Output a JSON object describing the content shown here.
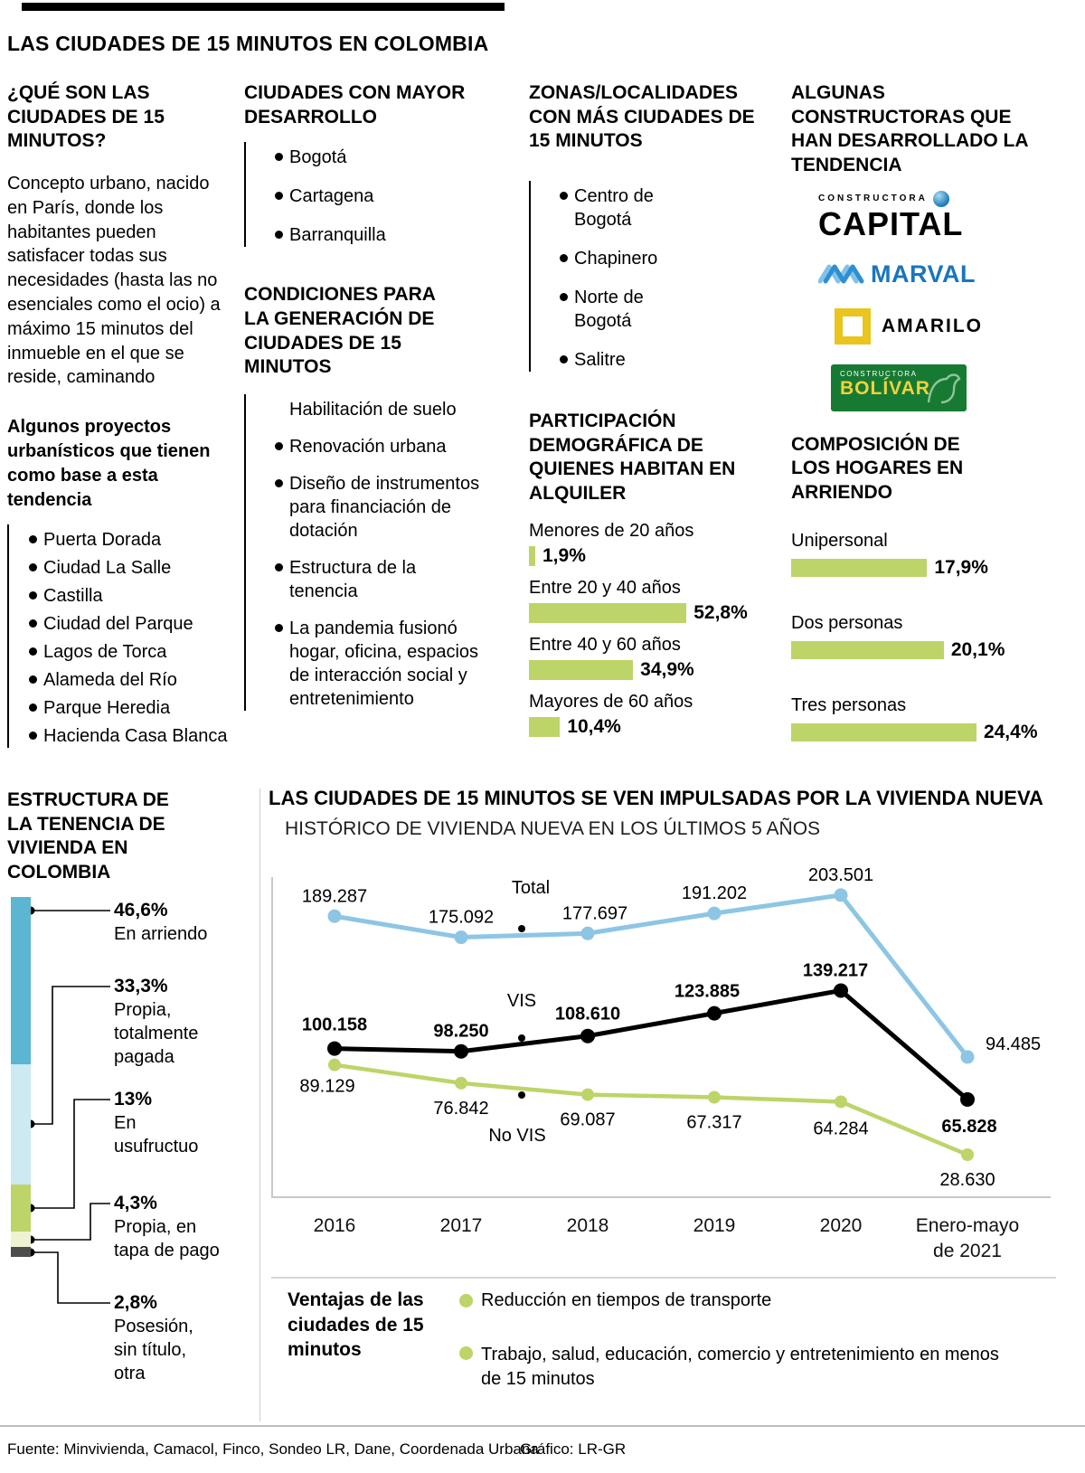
{
  "colors": {
    "accent": "#bdd468",
    "blue": "#8cc6e4",
    "teal": "#5ab6d1"
  },
  "header": {
    "title": "LAS CIUDADES DE 15 MINUTOS EN COLOMBIA"
  },
  "what": {
    "title": "¿QUÉ SON LAS CIUDADES DE 15 MINUTOS?",
    "text": "Concepto urbano, nacido en París, donde los habitantes pueden satisfacer todas sus necesidades (hasta las no esenciales como el ocio) a máximo 15 minutos del inmueble en el que se reside, caminando",
    "projects_title": "Algunos proyectos urbanísticos que tienen como base a esta tendencia",
    "projects": [
      "Puerta Dorada",
      "Ciudad La Salle",
      "Castilla",
      "Ciudad del Parque",
      "Lagos de Torca",
      "Alameda del Río",
      "Parque Heredia",
      "Hacienda Casa Blanca"
    ]
  },
  "development": {
    "title": "CIUDADES CON MAYOR DESARROLLO",
    "cities": [
      "Bogotá",
      "Cartagena",
      "Barranquilla"
    ]
  },
  "conditions": {
    "title": "CONDICIONES PARA LA GENERACIÓN DE CIUDADES DE 15 MINUTOS",
    "items": [
      "Habilitación de suelo",
      "Renovación urbana",
      "Diseño de instrumentos para financiación de dotación",
      "Estructura de la tenencia",
      "La pandemia fusionó hogar, oficina, espacios de interacción social y entretenimiento"
    ]
  },
  "zones": {
    "title": "ZONAS/LOCALIDADES CON MÁS CIUDADES DE 15 MINUTOS",
    "items": [
      "Centro de Bogotá",
      "Chapinero",
      "Norte de Bogotá",
      "Salitre"
    ]
  },
  "demographics": {
    "title": "PARTICIPACIÓN DEMOGRÁFICA DE QUIENES HABITAN EN ALQUILER",
    "rows": [
      {
        "label": "Menores de 20 años",
        "value": "1,9%",
        "pct": 1.9
      },
      {
        "label": "Entre 20 y 40 años",
        "value": "52,8%",
        "pct": 52.8
      },
      {
        "label": "Entre 40 y 60 años",
        "value": "34,9%",
        "pct": 34.9
      },
      {
        "label": "Mayores de 60 años",
        "value": "10,4%",
        "pct": 10.4
      }
    ]
  },
  "builders": {
    "title": "ALGUNAS CONSTRUCTORAS QUE HAN DESARROLLADO LA TENDENCIA",
    "capital": {
      "small": "CONSTRUCTORA",
      "big": "CAPITAL"
    },
    "marval": "MARVAL",
    "amarilo": "AMARILO",
    "bolivar": {
      "small": "CONSTRUCTORA",
      "big": "BOLÍVAR"
    }
  },
  "households": {
    "title": "COMPOSICIÓN DE LOS HOGARES EN ARRIENDO",
    "rows": [
      {
        "label": "Unipersonal",
        "value": "17,9%",
        "pct": 17.9
      },
      {
        "label": "Dos personas",
        "value": "20,1%",
        "pct": 20.1
      },
      {
        "label": "Tres personas",
        "value": "24,4%",
        "pct": 24.4
      }
    ]
  },
  "tenure": {
    "title": "ESTRUCTURA DE LA TENENCIA DE VIVIENDA EN COLOMBIA",
    "segments": [
      {
        "value": "46,6%",
        "label": "En arriendo",
        "pct": 46.6,
        "color": "#5ab6d1"
      },
      {
        "value": "33,3%",
        "label": "Propia,\ntotalmente\npagada",
        "pct": 33.3,
        "color": "#cde9f2"
      },
      {
        "value": "13%",
        "label": "En\nusufructuo",
        "pct": 13,
        "color": "#bdd468"
      },
      {
        "value": "4,3%",
        "label": "Propia, en\ntapa de pago",
        "pct": 4.3,
        "color": "#eff3d2"
      },
      {
        "value": "2,8%",
        "label": "Posesión,\nsin título,\notra",
        "pct": 2.8,
        "color": "#4d4d4d"
      }
    ]
  },
  "chart_data": {
    "type": "line",
    "title": "LAS CIUDADES DE 15 MINUTOS SE VEN IMPULSADAS POR LA VIVIENDA NUEVA",
    "subtitle": "HISTÓRICO DE VIVIENDA NUEVA EN LOS ÚLTIMOS 5 AÑOS",
    "categories": [
      "2016",
      "2017",
      "2018",
      "2019",
      "2020",
      "Enero-mayo\nde 2021"
    ],
    "ylim": [
      0,
      240000
    ],
    "grid": false,
    "series": [
      {
        "name": "Total",
        "color": "#8cc6e4",
        "values": [
          189287,
          175092,
          177697,
          191202,
          203501,
          94485
        ],
        "labels": [
          "189.287",
          "175.092",
          "177.697",
          "191.202",
          "203.501",
          "94.485"
        ]
      },
      {
        "name": "VIS",
        "color": "#000000",
        "values": [
          100158,
          98250,
          108610,
          123885,
          139217,
          65828
        ],
        "labels": [
          "100.158",
          "98.250",
          "108.610",
          "123.885",
          "139.217",
          "65.828"
        ]
      },
      {
        "name": "No VIS",
        "color": "#bdd468",
        "values": [
          89129,
          76842,
          69087,
          67317,
          64284,
          28630
        ],
        "labels": [
          "89.129",
          "76.842",
          "69.087",
          "67.317",
          "64.284",
          "28.630"
        ]
      }
    ]
  },
  "advantages": {
    "title": "Ventajas de las ciudades de 15 minutos",
    "items": [
      "Reducción en tiempos de transporte",
      "Trabajo, salud, educación, comercio y entretenimiento en menos de 15 minutos"
    ]
  },
  "footer": {
    "source": "Fuente: Minvivienda, Camacol, Finco, Sondeo LR, Dane, Coordenada Urbana",
    "credit": "Gráfico: LR-GR"
  }
}
